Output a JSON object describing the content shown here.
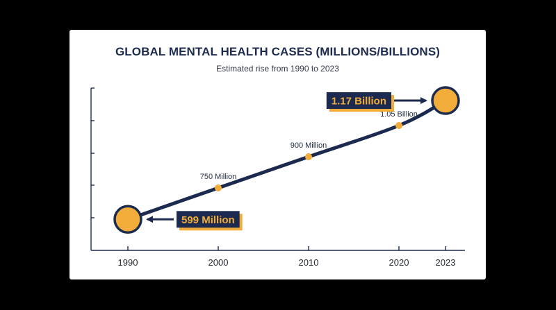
{
  "chart_data": {
    "type": "line",
    "title": "GLOBAL MENTAL HEALTH CASES (MILLIONS/BILLIONS)",
    "subtitle": "Estimated rise from 1990 to 2023",
    "x": [
      1990,
      2000,
      2010,
      2020,
      2023
    ],
    "x_tick_labels": [
      "1990",
      "2000",
      "2010",
      "2020",
      "2023"
    ],
    "values": [
      599,
      750,
      900,
      1050,
      1170
    ],
    "data_labels": [
      "599 Million",
      "750 Million",
      "900 Million",
      "1.05 Billion",
      "1.17 Billion"
    ],
    "highlighted_points": [
      0,
      4
    ],
    "xlabel": "",
    "ylabel": "",
    "ylim": [
      450,
      1250
    ],
    "grid": false,
    "colors": {
      "line": "#1b2a4e",
      "point": "#f2ac3a",
      "callout_bg": "#1b2a4e",
      "callout_shadow": "#f2ac3a",
      "callout_text": "#f2ac3a"
    }
  }
}
